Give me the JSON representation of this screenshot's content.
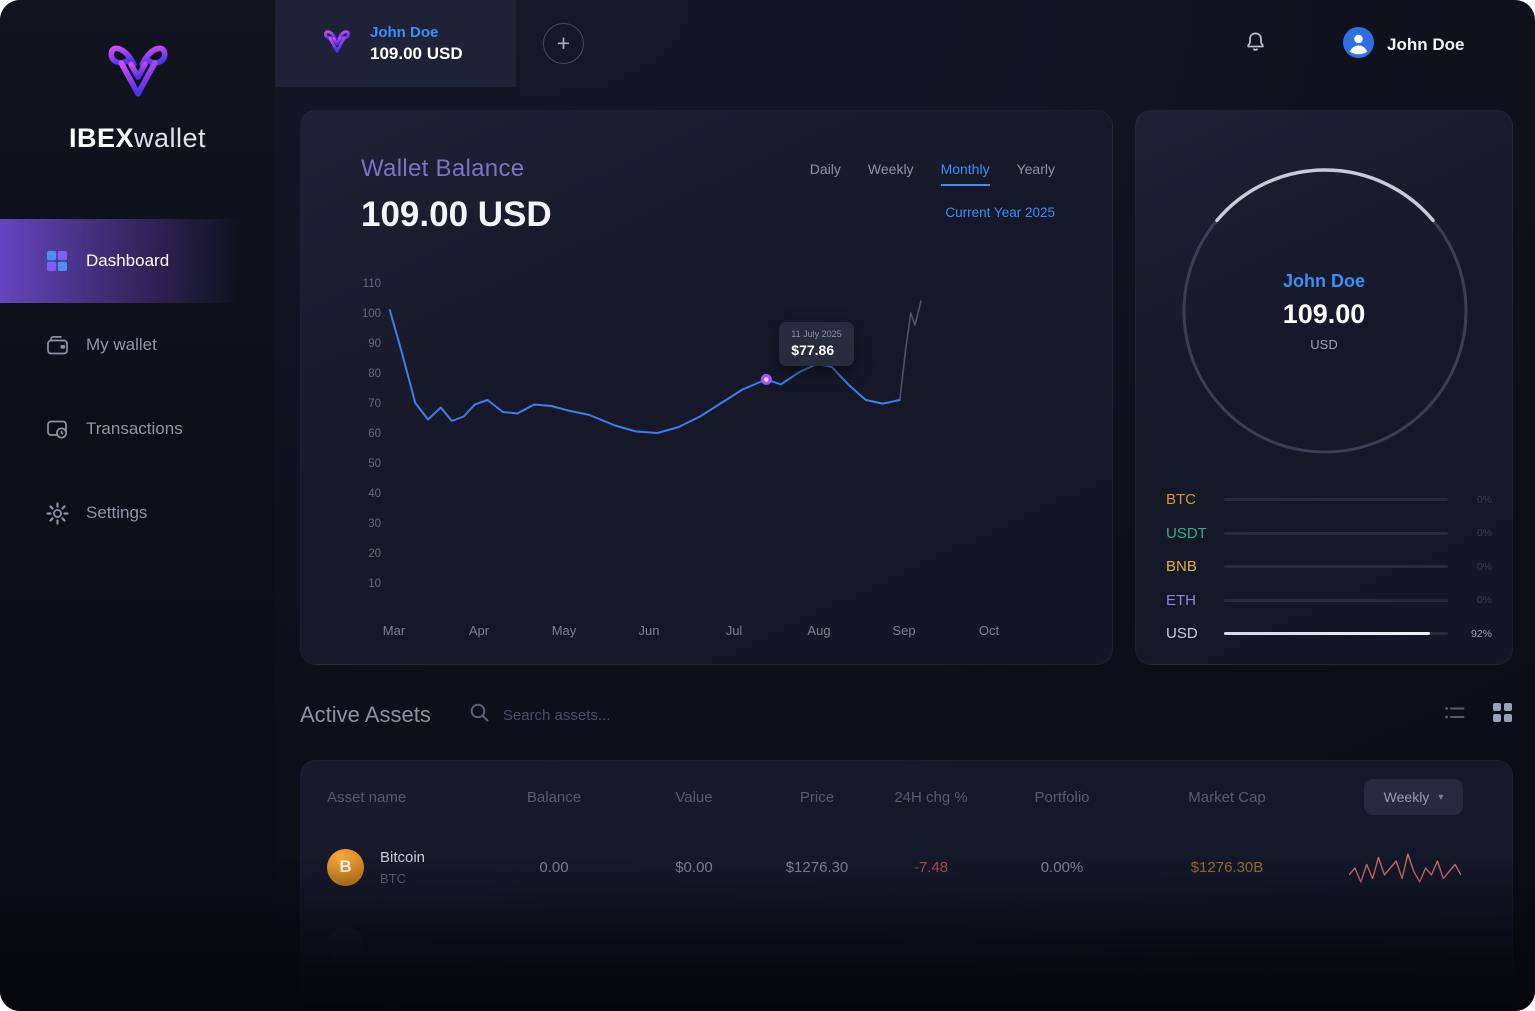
{
  "brand": {
    "bold": "IBEX",
    "light": "wallet"
  },
  "sidebar": {
    "items": [
      {
        "label": "Dashboard",
        "active": true
      },
      {
        "label": "My wallet",
        "active": false
      },
      {
        "label": "Transactions",
        "active": false
      },
      {
        "label": "Settings",
        "active": false
      }
    ]
  },
  "topbar": {
    "wallet_tab": {
      "name": "John Doe",
      "balance": "109.00 USD"
    },
    "add_label": "+",
    "user_name": "John Doe"
  },
  "balance_card": {
    "title": "Wallet Balance",
    "amount": "109.00 USD",
    "period_tabs": [
      "Daily",
      "Weekly",
      "Monthly",
      "Yearly"
    ],
    "active_tab": "Monthly",
    "subtitle": "Current Year 2025"
  },
  "chart_data": {
    "type": "line",
    "title": "Wallet Balance",
    "unit": "USD",
    "x_labels": [
      "Mar",
      "Apr",
      "May",
      "Jun",
      "Jul",
      "Aug",
      "Sep",
      "Oct"
    ],
    "y_ticks": [
      110,
      100,
      90,
      80,
      70,
      60,
      50,
      40,
      30,
      20,
      10
    ],
    "ylim": [
      10,
      110
    ],
    "grid": false,
    "series": [
      {
        "name": "balance",
        "color": "#3f7de8",
        "width": 2,
        "points": [
          [
            -0.05,
            101
          ],
          [
            0.1,
            86
          ],
          [
            0.25,
            70
          ],
          [
            0.4,
            64.5
          ],
          [
            0.55,
            68.5
          ],
          [
            0.68,
            64
          ],
          [
            0.82,
            65.5
          ],
          [
            0.95,
            69.5
          ],
          [
            1.1,
            71
          ],
          [
            1.28,
            67
          ],
          [
            1.45,
            66.5
          ],
          [
            1.65,
            69.5
          ],
          [
            1.85,
            69
          ],
          [
            2.05,
            67.5
          ],
          [
            2.3,
            66
          ],
          [
            2.6,
            62.5
          ],
          [
            2.85,
            60.5
          ],
          [
            3.1,
            60
          ],
          [
            3.35,
            62
          ],
          [
            3.6,
            65.5
          ],
          [
            3.85,
            70
          ],
          [
            4.1,
            74.5
          ],
          [
            4.38,
            77.86
          ],
          [
            4.55,
            76.2
          ],
          [
            4.78,
            80.5
          ],
          [
            4.98,
            83
          ],
          [
            5.15,
            82
          ],
          [
            5.35,
            76
          ],
          [
            5.55,
            71
          ],
          [
            5.75,
            69.8
          ],
          [
            5.95,
            71
          ]
        ]
      },
      {
        "name": "projection",
        "color": "#5c6278",
        "width": 1.6,
        "opacity": 0.8,
        "points": [
          [
            5.95,
            71
          ],
          [
            6.02,
            88
          ],
          [
            6.08,
            100
          ],
          [
            6.13,
            96
          ],
          [
            6.2,
            104
          ]
        ]
      }
    ],
    "marker": {
      "month_index": 4.38,
      "value": 77.86,
      "date": "11 July 2025",
      "label": "$77.86"
    }
  },
  "profile_card": {
    "name": "John Doe",
    "amount": "109.00",
    "currency": "USD",
    "assets": [
      {
        "symbol": "BTC",
        "color": "#cf9b3a",
        "pct": 0
      },
      {
        "symbol": "USDT",
        "color": "#2fae8f",
        "pct": 0
      },
      {
        "symbol": "BNB",
        "color": "#e3b341",
        "pct": 0
      },
      {
        "symbol": "ETH",
        "color": "#8f83e8",
        "pct": 0
      },
      {
        "symbol": "USD",
        "color": "#c9cdda",
        "pct": 92
      }
    ]
  },
  "assets_section": {
    "title": "Active Assets",
    "search_placeholder": "Search assets...",
    "columns": [
      "Asset name",
      "Balance",
      "Value",
      "Price",
      "24H chg %",
      "Portfolio",
      "Market Cap"
    ],
    "period_filter": "Weekly",
    "rows": [
      {
        "name": "Bitcoin",
        "symbol": "BTC",
        "balance": "0.00",
        "value": "$0.00",
        "price": "$1276.30",
        "change_24h": "-7.48",
        "portfolio": "0.00%",
        "market_cap": "$1276.30B",
        "spark": [
          7,
          9,
          5,
          10,
          6,
          12,
          7,
          9,
          11,
          6,
          13,
          8,
          5,
          9,
          7,
          11,
          6,
          8,
          10,
          7
        ]
      },
      {
        "name": "",
        "symbol": "",
        "balance": "",
        "value": "",
        "price": "",
        "change_24h": "",
        "portfolio": "",
        "market_cap": ""
      }
    ]
  }
}
